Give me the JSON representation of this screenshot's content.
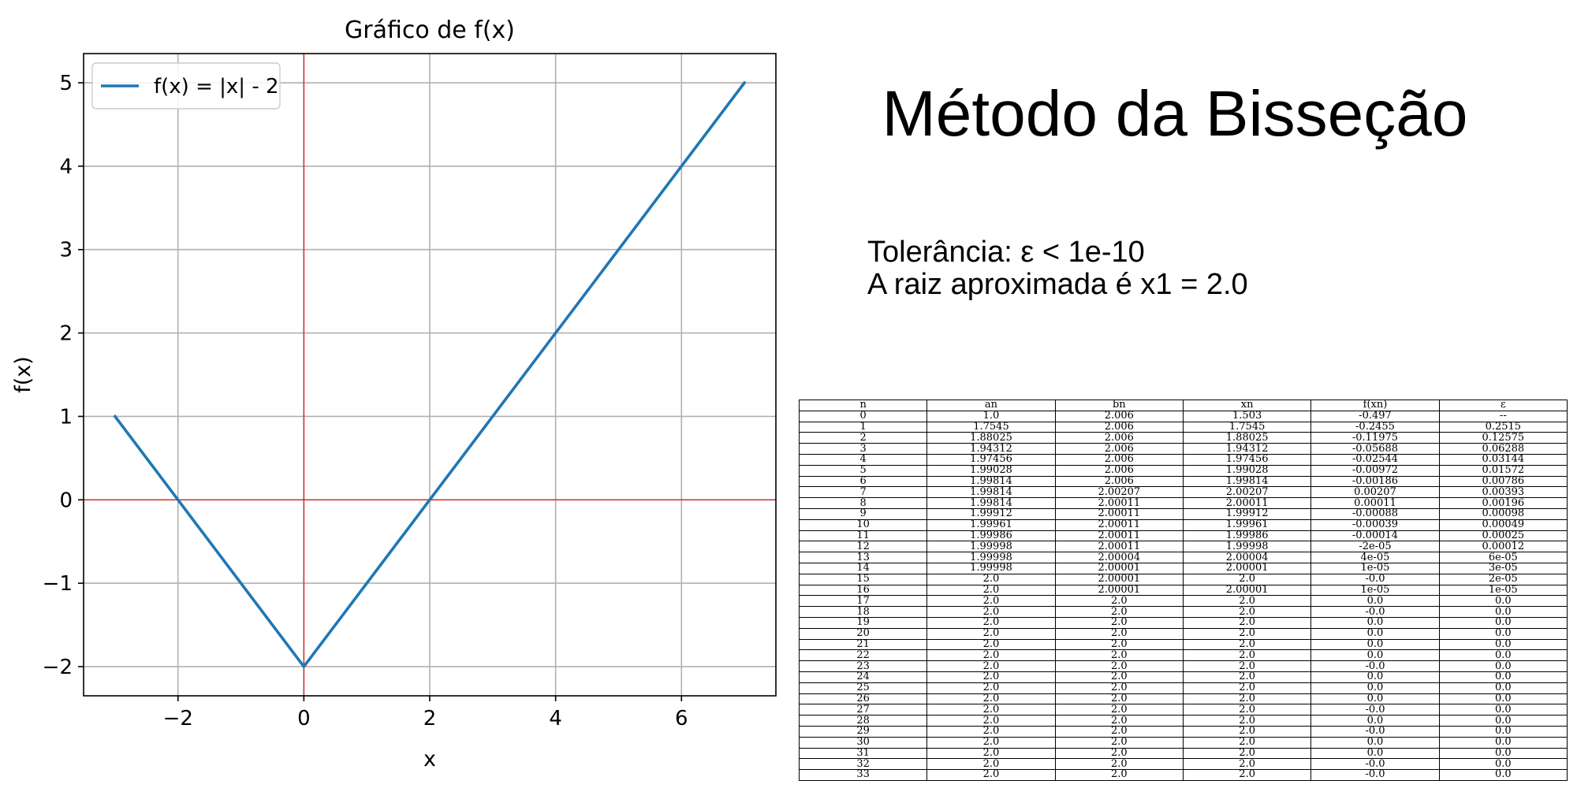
{
  "chart_data": {
    "type": "line",
    "title": "Gráfico de f(x)",
    "xlabel": "x",
    "ylabel": "f(x)",
    "xlim": [
      -3.5,
      7.5
    ],
    "ylim": [
      -2.35,
      5.35
    ],
    "xticks": [
      -2,
      0,
      2,
      4,
      6
    ],
    "yticks": [
      -2,
      -1,
      0,
      1,
      2,
      3,
      4,
      5
    ],
    "xtick_labels": [
      "−2",
      "0",
      "2",
      "4",
      "6"
    ],
    "ytick_labels": [
      "−2",
      "−1",
      "0",
      "1",
      "2",
      "3",
      "4",
      "5"
    ],
    "grid": true,
    "legend": "top-left",
    "series": [
      {
        "name": "f(x) = |x| - 2",
        "color": "#1f77b4",
        "x": [
          -3,
          0,
          7
        ],
        "y": [
          1,
          -2,
          5
        ]
      }
    ],
    "reference_lines": {
      "color": "#d62728",
      "x": 0,
      "y": 0
    }
  },
  "heading": "Método da Bisseção",
  "info": {
    "tolerance": "Tolerância: ε < 1e-10",
    "root": "A raiz aproximada é x1 = 2.0"
  },
  "table": {
    "headers": [
      "n",
      "an",
      "bn",
      "xn",
      "f(xn)",
      "ε"
    ],
    "rows": [
      [
        "0",
        "1.0",
        "2.006",
        "1.503",
        "-0.497",
        "--"
      ],
      [
        "1",
        "1.7545",
        "2.006",
        "1.7545",
        "-0.2455",
        "0.2515"
      ],
      [
        "2",
        "1.88025",
        "2.006",
        "1.88025",
        "-0.11975",
        "0.12575"
      ],
      [
        "3",
        "1.94312",
        "2.006",
        "1.94312",
        "-0.05688",
        "0.06288"
      ],
      [
        "4",
        "1.97456",
        "2.006",
        "1.97456",
        "-0.02544",
        "0.03144"
      ],
      [
        "5",
        "1.99028",
        "2.006",
        "1.99028",
        "-0.00972",
        "0.01572"
      ],
      [
        "6",
        "1.99814",
        "2.006",
        "1.99814",
        "-0.00186",
        "0.00786"
      ],
      [
        "7",
        "1.99814",
        "2.00207",
        "2.00207",
        "0.00207",
        "0.00393"
      ],
      [
        "8",
        "1.99814",
        "2.00011",
        "2.00011",
        "0.00011",
        "0.00196"
      ],
      [
        "9",
        "1.99912",
        "2.00011",
        "1.99912",
        "-0.00088",
        "0.00098"
      ],
      [
        "10",
        "1.99961",
        "2.00011",
        "1.99961",
        "-0.00039",
        "0.00049"
      ],
      [
        "11",
        "1.99986",
        "2.00011",
        "1.99986",
        "-0.00014",
        "0.00025"
      ],
      [
        "12",
        "1.99998",
        "2.00011",
        "1.99998",
        "-2e-05",
        "0.00012"
      ],
      [
        "13",
        "1.99998",
        "2.00004",
        "2.00004",
        "4e-05",
        "6e-05"
      ],
      [
        "14",
        "1.99998",
        "2.00001",
        "2.00001",
        "1e-05",
        "3e-05"
      ],
      [
        "15",
        "2.0",
        "2.00001",
        "2.0",
        "-0.0",
        "2e-05"
      ],
      [
        "16",
        "2.0",
        "2.00001",
        "2.00001",
        "1e-05",
        "1e-05"
      ],
      [
        "17",
        "2.0",
        "2.0",
        "2.0",
        "0.0",
        "0.0"
      ],
      [
        "18",
        "2.0",
        "2.0",
        "2.0",
        "-0.0",
        "0.0"
      ],
      [
        "19",
        "2.0",
        "2.0",
        "2.0",
        "0.0",
        "0.0"
      ],
      [
        "20",
        "2.0",
        "2.0",
        "2.0",
        "0.0",
        "0.0"
      ],
      [
        "21",
        "2.0",
        "2.0",
        "2.0",
        "0.0",
        "0.0"
      ],
      [
        "22",
        "2.0",
        "2.0",
        "2.0",
        "0.0",
        "0.0"
      ],
      [
        "23",
        "2.0",
        "2.0",
        "2.0",
        "-0.0",
        "0.0"
      ],
      [
        "24",
        "2.0",
        "2.0",
        "2.0",
        "0.0",
        "0.0"
      ],
      [
        "25",
        "2.0",
        "2.0",
        "2.0",
        "0.0",
        "0.0"
      ],
      [
        "26",
        "2.0",
        "2.0",
        "2.0",
        "0.0",
        "0.0"
      ],
      [
        "27",
        "2.0",
        "2.0",
        "2.0",
        "-0.0",
        "0.0"
      ],
      [
        "28",
        "2.0",
        "2.0",
        "2.0",
        "0.0",
        "0.0"
      ],
      [
        "29",
        "2.0",
        "2.0",
        "2.0",
        "-0.0",
        "0.0"
      ],
      [
        "30",
        "2.0",
        "2.0",
        "2.0",
        "0.0",
        "0.0"
      ],
      [
        "31",
        "2.0",
        "2.0",
        "2.0",
        "0.0",
        "0.0"
      ],
      [
        "32",
        "2.0",
        "2.0",
        "2.0",
        "-0.0",
        "0.0"
      ],
      [
        "33",
        "2.0",
        "2.0",
        "2.0",
        "-0.0",
        "0.0"
      ]
    ]
  }
}
